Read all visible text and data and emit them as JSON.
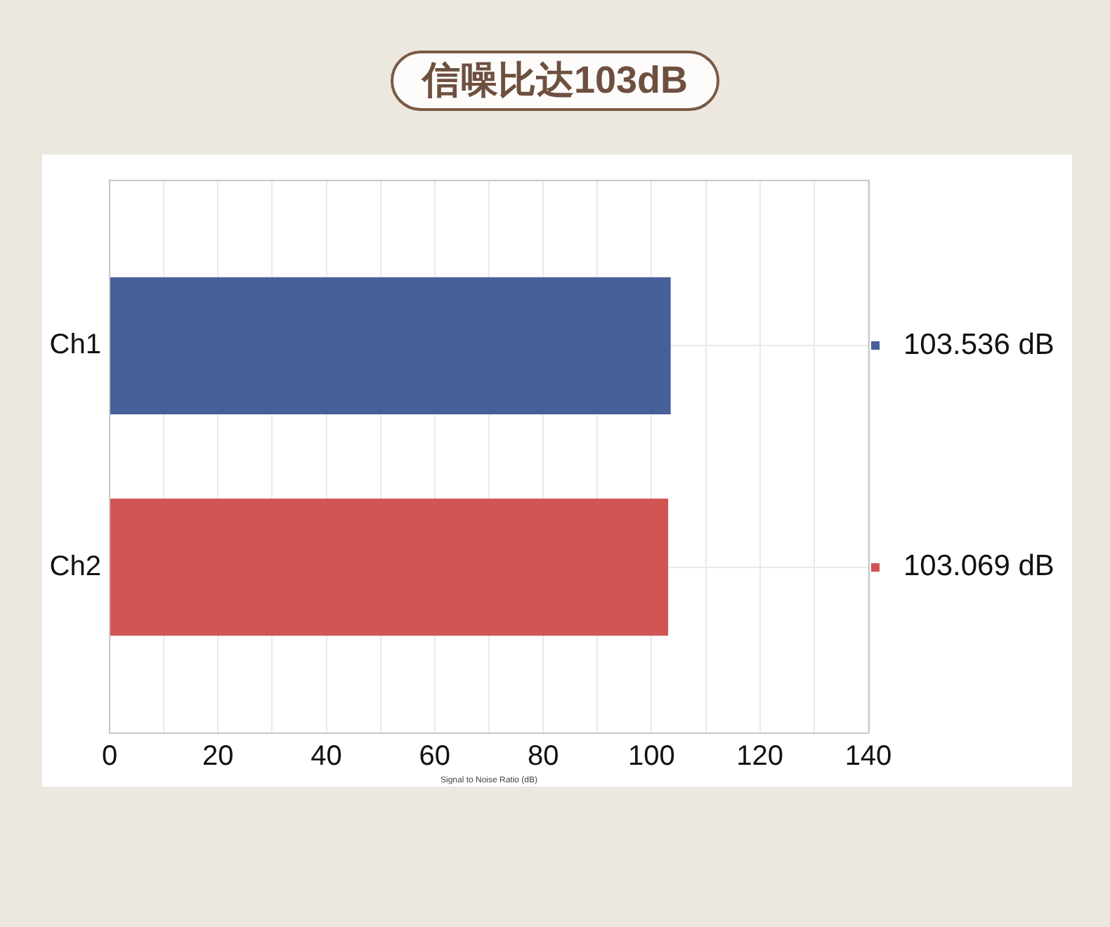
{
  "chart_data": {
    "type": "bar",
    "orientation": "horizontal",
    "title": "信噪比达103dB",
    "xlabel": "Signal to Noise Ratio (dB)",
    "categories": [
      "Ch1",
      "Ch2"
    ],
    "values": [
      103.536,
      103.069
    ],
    "colors": [
      "#48609a",
      "#d05553"
    ],
    "value_labels": [
      "103.536 dB",
      "103.069 dB"
    ],
    "xlim": [
      0,
      140
    ],
    "xticks": [
      0,
      {
        "value": 10,
        "label": null
      },
      20,
      {
        "value": 30,
        "label": null
      },
      40,
      {
        "value": 50,
        "label": null
      },
      60,
      {
        "value": 70,
        "label": null
      },
      80,
      {
        "value": 90,
        "label": null
      },
      100,
      {
        "value": 110,
        "label": null
      },
      120,
      {
        "value": 130,
        "label": null
      },
      140
    ],
    "grid": true
  }
}
